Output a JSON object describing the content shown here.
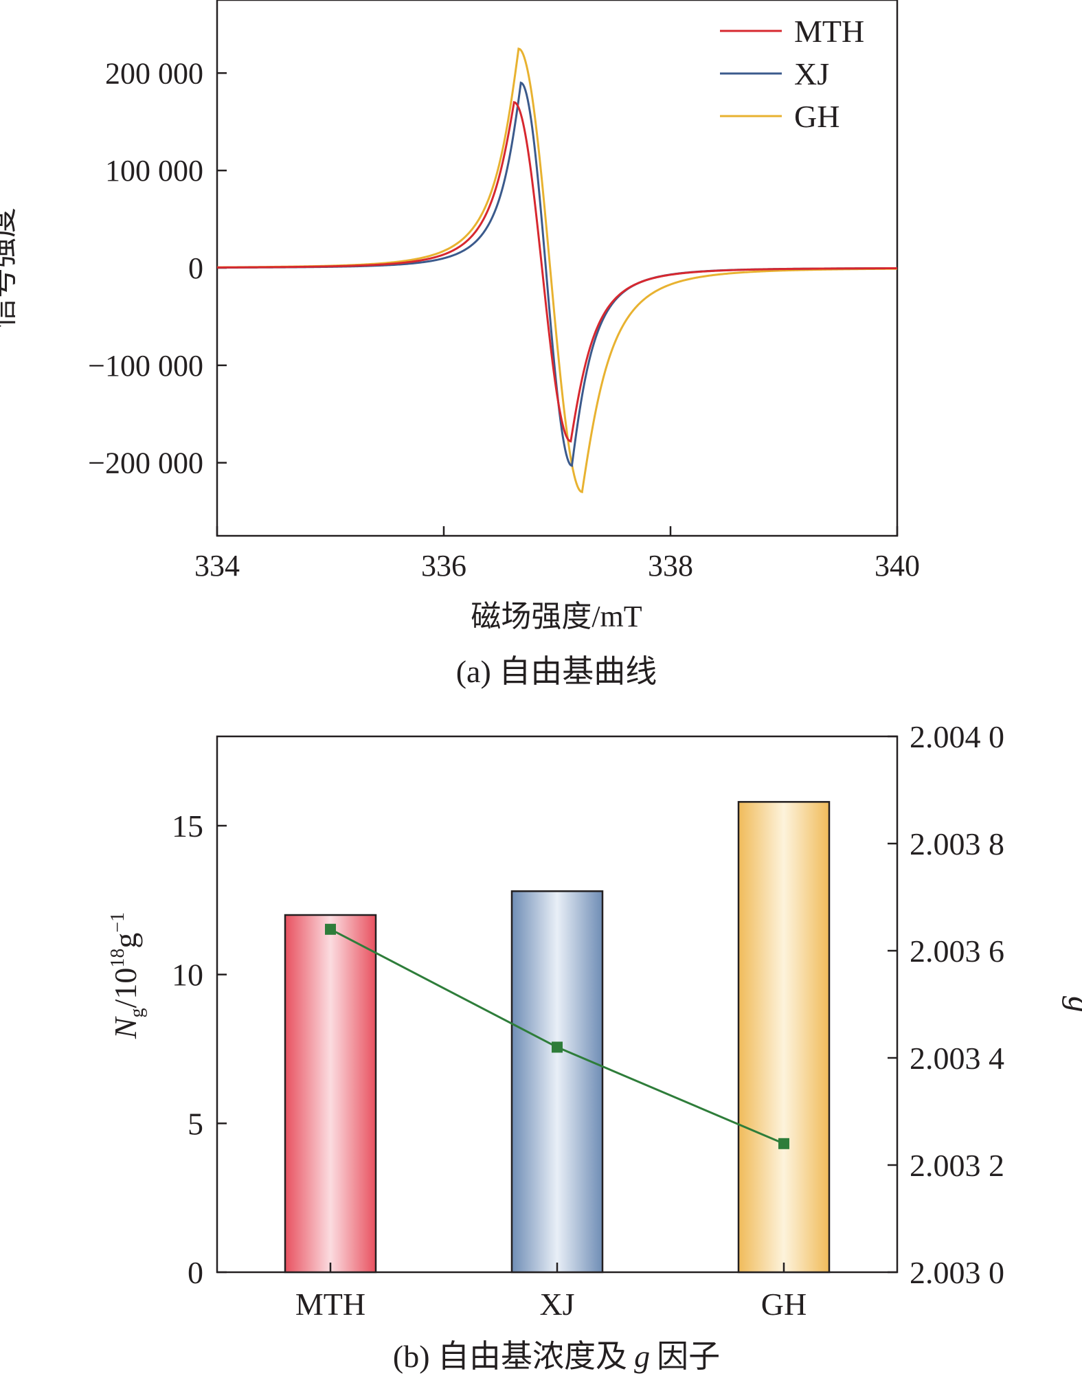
{
  "chart_data": [
    {
      "type": "line",
      "panel_caption": "(a) 自由基曲线",
      "xlabel": "磁场强度/mT",
      "ylabel": "信号强度",
      "xlim": [
        334,
        340
      ],
      "ylim": [
        -275000,
        275000
      ],
      "xticks": [
        334,
        336,
        338,
        340
      ],
      "xtick_labels": [
        "334",
        "336",
        "338",
        "340"
      ],
      "yticks": [
        200000,
        100000,
        0,
        -100000,
        -200000
      ],
      "ytick_labels": [
        "200 000",
        "100 000",
        "0",
        "−100 000",
        "−200 000"
      ],
      "legend_position": "top-right",
      "series": [
        {
          "name": "MTH",
          "color": "#d7282f",
          "x0": 336.87,
          "peak_x": 336.62,
          "peak_y": 170000,
          "trough_x": 337.12,
          "trough_y": -178000
        },
        {
          "name": "XJ",
          "color": "#3b5a8c",
          "x0": 336.9,
          "peak_x": 336.68,
          "peak_y": 190000,
          "trough_x": 337.13,
          "trough_y": -203000
        },
        {
          "name": "GH",
          "color": "#e8b230",
          "x0": 336.92,
          "peak_x": 336.66,
          "peak_y": 225000,
          "trough_x": 337.22,
          "trough_y": -230000
        }
      ]
    },
    {
      "type": "bar",
      "panel_caption_prefix": "(b) 自由基浓度及",
      "panel_caption_italic": "g",
      "panel_caption_suffix": "因子",
      "categories": [
        "MTH",
        "XJ",
        "GH"
      ],
      "ylabel_parts": {
        "N": "N",
        "sub": "g",
        "mid": "/10",
        "sup": "18",
        "g": "g",
        "exp": "−1"
      },
      "ylim": [
        0,
        18
      ],
      "yticks": [
        0,
        5,
        10,
        15
      ],
      "ytick_labels": [
        "0",
        "5",
        "10",
        "15"
      ],
      "bar_series": {
        "values": [
          12.0,
          12.8,
          15.8
        ],
        "colors": [
          "#e8515f",
          "#6f8db5",
          "#f0bb5a"
        ]
      },
      "line_series": {
        "axis": "right",
        "values": [
          2.00364,
          2.00342,
          2.00324
        ],
        "color": "#2e7d3a",
        "marker": "square"
      },
      "y2label": "g",
      "y2lim": [
        2.003,
        2.004
      ],
      "y2ticks": [
        2.003,
        2.0032,
        2.0034,
        2.0036,
        2.0038,
        2.004
      ],
      "y2tick_labels": [
        "2.003 0",
        "2.003 2",
        "2.003 4",
        "2.003 6",
        "2.003 8",
        "2.004 0"
      ]
    }
  ]
}
